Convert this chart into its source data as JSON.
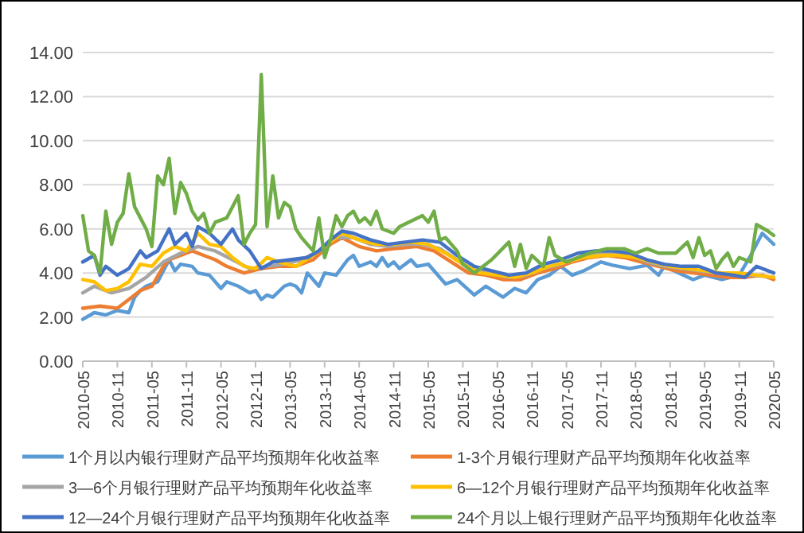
{
  "chart_data": {
    "type": "line",
    "xlim": [
      "2010-05",
      "2020-05"
    ],
    "xticks": [
      "2010-05",
      "2010-11",
      "2011-05",
      "2011-11",
      "2012-05",
      "2012-11",
      "2013-05",
      "2013-11",
      "2014-05",
      "2014-11",
      "2015-05",
      "2015-11",
      "2016-05",
      "2016-11",
      "2017-05",
      "2017-11",
      "2018-05",
      "2018-11",
      "2019-05",
      "2019-11",
      "2020-05"
    ],
    "ylim": [
      0,
      14
    ],
    "yticks": [
      {
        "value": 0,
        "label": "0.00"
      },
      {
        "value": 2,
        "label": "2.00"
      },
      {
        "value": 4,
        "label": "4.00"
      },
      {
        "value": 6,
        "label": "6.00"
      },
      {
        "value": 8,
        "label": "8.00"
      },
      {
        "value": 10,
        "label": "10.00"
      },
      {
        "value": 12,
        "label": "12.00"
      },
      {
        "value": 14,
        "label": "14.00"
      }
    ],
    "grid": "y",
    "legend": "bottom",
    "marker": "none",
    "line_style": "solid",
    "series": [
      {
        "name": "1个月以内银行理财产品平均预期年化收益率",
        "color": "#5b9bd5",
        "x": [
          "2010-05",
          "2010-07",
          "2010-09",
          "2010-11",
          "2011-01",
          "2011-02",
          "2011-03",
          "2011-04",
          "2011-06",
          "2011-08",
          "2011-09",
          "2011-10",
          "2011-12",
          "2012-01",
          "2012-03",
          "2012-05",
          "2012-06",
          "2012-08",
          "2012-10",
          "2012-11",
          "2012-12",
          "2013-01",
          "2013-02",
          "2013-04",
          "2013-05",
          "2013-06",
          "2013-07",
          "2013-08",
          "2013-10",
          "2013-11",
          "2014-01",
          "2014-03",
          "2014-04",
          "2014-05",
          "2014-07",
          "2014-08",
          "2014-09",
          "2014-10",
          "2014-11",
          "2014-12",
          "2015-02",
          "2015-03",
          "2015-05",
          "2015-08",
          "2015-10",
          "2016-01",
          "2016-03",
          "2016-06",
          "2016-08",
          "2016-10",
          "2016-12",
          "2017-02",
          "2017-04",
          "2017-06",
          "2017-08",
          "2017-11",
          "2018-01",
          "2018-04",
          "2018-07",
          "2018-09",
          "2018-10",
          "2019-03",
          "2019-05",
          "2019-08",
          "2019-11",
          "2020-01",
          "2020-03",
          "2020-05"
        ],
        "values": [
          1.9,
          2.2,
          2.1,
          2.3,
          2.2,
          2.9,
          3.2,
          3.4,
          3.6,
          4.6,
          4.1,
          4.4,
          4.3,
          4.0,
          3.9,
          3.3,
          3.6,
          3.4,
          3.1,
          3.2,
          2.8,
          3.0,
          2.9,
          3.4,
          3.5,
          3.4,
          3.1,
          4.0,
          3.4,
          4.0,
          3.9,
          4.6,
          4.8,
          4.3,
          4.5,
          4.3,
          4.7,
          4.3,
          4.5,
          4.2,
          4.6,
          4.3,
          4.4,
          3.5,
          3.7,
          3.0,
          3.4,
          2.9,
          3.3,
          3.1,
          3.7,
          3.9,
          4.3,
          3.9,
          4.1,
          4.5,
          4.35,
          4.2,
          4.35,
          3.9,
          4.3,
          3.7,
          3.9,
          3.7,
          3.9,
          4.8,
          5.8,
          5.3
        ]
      },
      {
        "name": "1-3个月银行理财产品平均预期年化收益率",
        "color": "#ed7d31",
        "x": [
          "2010-05",
          "2010-08",
          "2010-11",
          "2011-01",
          "2011-03",
          "2011-05",
          "2011-07",
          "2011-08",
          "2011-10",
          "2011-12",
          "2012-02",
          "2012-04",
          "2012-06",
          "2012-09",
          "2012-12",
          "2013-03",
          "2013-06",
          "2013-09",
          "2013-12",
          "2014-02",
          "2014-05",
          "2014-08",
          "2014-11",
          "2015-03",
          "2015-06",
          "2015-09",
          "2015-12",
          "2016-03",
          "2016-06",
          "2016-09",
          "2016-12",
          "2017-03",
          "2017-06",
          "2017-09",
          "2017-12",
          "2018-03",
          "2018-06",
          "2018-09",
          "2018-12",
          "2019-03",
          "2019-06",
          "2019-09",
          "2019-12",
          "2020-03",
          "2020-05"
        ],
        "values": [
          2.4,
          2.5,
          2.4,
          2.8,
          3.2,
          3.4,
          4.3,
          4.6,
          4.8,
          5.0,
          4.8,
          4.6,
          4.3,
          4.0,
          4.2,
          4.3,
          4.3,
          4.6,
          5.3,
          5.6,
          5.2,
          5.0,
          5.1,
          5.2,
          5.0,
          4.5,
          4.0,
          3.9,
          3.7,
          3.7,
          4.0,
          4.2,
          4.5,
          4.7,
          4.8,
          4.7,
          4.5,
          4.3,
          4.1,
          4.0,
          3.9,
          3.8,
          3.8,
          3.9,
          3.7
        ]
      },
      {
        "name": "3—6个月银行理财产品平均预期年化收益率",
        "color": "#a5a5a5",
        "x": [
          "2010-05",
          "2010-07",
          "2010-10",
          "2011-01",
          "2011-04",
          "2011-07",
          "2011-10",
          "2012-01",
          "2012-04",
          "2012-07",
          "2012-10",
          "2013-01",
          "2013-04",
          "2013-07",
          "2013-10",
          "2014-01",
          "2014-04",
          "2014-07",
          "2014-10",
          "2015-01",
          "2015-04",
          "2015-07",
          "2015-10",
          "2016-01",
          "2016-04",
          "2016-07",
          "2016-10",
          "2017-01",
          "2017-04",
          "2017-07",
          "2017-10",
          "2018-01",
          "2018-04",
          "2018-07",
          "2018-10",
          "2019-01",
          "2019-04",
          "2019-07",
          "2019-10",
          "2020-01",
          "2020-05"
        ],
        "values": [
          3.1,
          3.4,
          3.1,
          3.3,
          3.8,
          4.5,
          4.9,
          5.2,
          5.0,
          4.6,
          4.2,
          4.3,
          4.4,
          4.6,
          5.0,
          5.6,
          5.6,
          5.3,
          5.2,
          5.3,
          5.3,
          5.1,
          4.6,
          4.1,
          4.0,
          3.8,
          3.9,
          4.2,
          4.4,
          4.7,
          4.9,
          4.9,
          4.8,
          4.5,
          4.3,
          4.2,
          4.1,
          4.0,
          3.9,
          3.9,
          3.8
        ]
      },
      {
        "name": "6—12个月银行理财产品平均预期年化收益率",
        "color": "#ffc000",
        "x": [
          "2010-05",
          "2010-07",
          "2010-09",
          "2010-11",
          "2011-01",
          "2011-03",
          "2011-05",
          "2011-07",
          "2011-09",
          "2011-11",
          "2012-01",
          "2012-03",
          "2012-05",
          "2012-07",
          "2012-09",
          "2012-11",
          "2013-01",
          "2013-03",
          "2013-06",
          "2013-09",
          "2013-12",
          "2014-02",
          "2014-05",
          "2014-08",
          "2014-11",
          "2015-02",
          "2015-05",
          "2015-08",
          "2015-11",
          "2016-02",
          "2016-05",
          "2016-08",
          "2016-11",
          "2017-02",
          "2017-05",
          "2017-08",
          "2017-11",
          "2018-02",
          "2018-05",
          "2018-08",
          "2018-11",
          "2019-02",
          "2019-05",
          "2019-08",
          "2019-11",
          "2020-02",
          "2020-05"
        ],
        "values": [
          3.7,
          3.6,
          3.2,
          3.3,
          3.6,
          4.4,
          4.3,
          4.9,
          5.2,
          5.0,
          5.8,
          5.3,
          5.2,
          4.7,
          4.3,
          4.2,
          4.7,
          4.5,
          4.3,
          4.8,
          5.4,
          5.8,
          5.5,
          5.3,
          5.3,
          5.4,
          5.3,
          4.9,
          4.4,
          4.0,
          3.9,
          3.8,
          4.0,
          4.3,
          4.5,
          4.7,
          4.8,
          4.8,
          4.7,
          4.5,
          4.3,
          4.2,
          4.1,
          4.0,
          4.0,
          3.9,
          3.8
        ]
      },
      {
        "name": "12—24个月银行理财产品平均预期年化收益率",
        "color": "#4472c4",
        "x": [
          "2010-05",
          "2010-07",
          "2010-08",
          "2010-09",
          "2010-11",
          "2011-01",
          "2011-03",
          "2011-04",
          "2011-06",
          "2011-08",
          "2011-09",
          "2011-11",
          "2011-12",
          "2012-01",
          "2012-03",
          "2012-05",
          "2012-07",
          "2012-08",
          "2012-10",
          "2012-12",
          "2013-02",
          "2013-05",
          "2013-08",
          "2013-10",
          "2013-12",
          "2014-02",
          "2014-04",
          "2014-07",
          "2014-10",
          "2015-01",
          "2015-04",
          "2015-07",
          "2015-10",
          "2016-01",
          "2016-04",
          "2016-07",
          "2016-10",
          "2017-01",
          "2017-04",
          "2017-07",
          "2017-10",
          "2018-01",
          "2018-04",
          "2018-07",
          "2018-10",
          "2019-01",
          "2019-04",
          "2019-07",
          "2019-10",
          "2019-12",
          "2020-02",
          "2020-05"
        ],
        "values": [
          4.5,
          4.8,
          3.9,
          4.3,
          3.9,
          4.2,
          5.0,
          4.7,
          5.0,
          6.0,
          5.3,
          5.8,
          5.2,
          6.1,
          5.8,
          5.3,
          6.0,
          5.5,
          5.0,
          4.2,
          4.5,
          4.6,
          4.7,
          5.0,
          5.5,
          5.9,
          5.8,
          5.5,
          5.3,
          5.4,
          5.5,
          5.4,
          4.8,
          4.3,
          4.1,
          3.9,
          4.0,
          4.4,
          4.6,
          4.9,
          5.0,
          5.0,
          4.9,
          4.6,
          4.4,
          4.3,
          4.3,
          4.0,
          3.9,
          3.8,
          4.3,
          4.0
        ]
      },
      {
        "name": "24个月以上银行理财产品平均预期年化收益率",
        "color": "#70ad47",
        "x": [
          "2010-05",
          "2010-06",
          "2010-07",
          "2010-08",
          "2010-09",
          "2010-10",
          "2010-11",
          "2010-12",
          "2011-01",
          "2011-02",
          "2011-03",
          "2011-04",
          "2011-05",
          "2011-06",
          "2011-07",
          "2011-08",
          "2011-09",
          "2011-10",
          "2011-11",
          "2011-12",
          "2012-01",
          "2012-02",
          "2012-03",
          "2012-04",
          "2012-05",
          "2012-06",
          "2012-07",
          "2012-08",
          "2012-09",
          "2012-10",
          "2012-11",
          "2012-12",
          "2013-01",
          "2013-02",
          "2013-03",
          "2013-04",
          "2013-05",
          "2013-06",
          "2013-07",
          "2013-08",
          "2013-09",
          "2013-10",
          "2013-11",
          "2013-12",
          "2014-01",
          "2014-02",
          "2014-03",
          "2014-04",
          "2014-05",
          "2014-06",
          "2014-07",
          "2014-08",
          "2014-09",
          "2014-10",
          "2014-11",
          "2014-12",
          "2015-04",
          "2015-05",
          "2015-06",
          "2015-07",
          "2015-08",
          "2015-10",
          "2015-11",
          "2016-01",
          "2016-04",
          "2016-07",
          "2016-08",
          "2016-09",
          "2016-10",
          "2016-11",
          "2017-01",
          "2017-02",
          "2017-03",
          "2017-05",
          "2017-09",
          "2017-12",
          "2018-03",
          "2018-05",
          "2018-07",
          "2018-09",
          "2018-12",
          "2019-02",
          "2019-03",
          "2019-04",
          "2019-05",
          "2019-06",
          "2019-07",
          "2019-08",
          "2019-09",
          "2019-10",
          "2019-11",
          "2019-12",
          "2020-01",
          "2020-02",
          "2020-04",
          "2020-05"
        ],
        "values": [
          6.6,
          5.0,
          4.8,
          4.0,
          6.8,
          5.3,
          6.3,
          6.7,
          8.5,
          7.0,
          6.5,
          6.0,
          5.2,
          8.4,
          8.0,
          9.2,
          6.7,
          8.1,
          7.6,
          6.8,
          6.4,
          6.7,
          5.8,
          6.3,
          6.4,
          6.5,
          7.0,
          7.5,
          5.3,
          5.8,
          6.2,
          13.0,
          6.1,
          8.4,
          6.5,
          7.2,
          7.0,
          6.0,
          5.6,
          5.3,
          5.0,
          6.5,
          4.7,
          5.5,
          6.6,
          6.1,
          6.6,
          6.8,
          6.3,
          6.5,
          6.2,
          6.8,
          6.0,
          5.9,
          5.8,
          6.1,
          6.6,
          6.3,
          6.8,
          5.5,
          5.6,
          5.0,
          4.4,
          4.0,
          4.6,
          5.4,
          4.3,
          5.3,
          4.2,
          4.8,
          4.3,
          5.6,
          4.8,
          4.5,
          4.9,
          5.1,
          5.1,
          4.9,
          5.1,
          4.9,
          4.9,
          5.4,
          4.7,
          5.6,
          4.8,
          5.0,
          4.2,
          4.6,
          4.9,
          4.3,
          4.7,
          4.6,
          4.5,
          6.2,
          5.9,
          5.7
        ]
      }
    ]
  }
}
